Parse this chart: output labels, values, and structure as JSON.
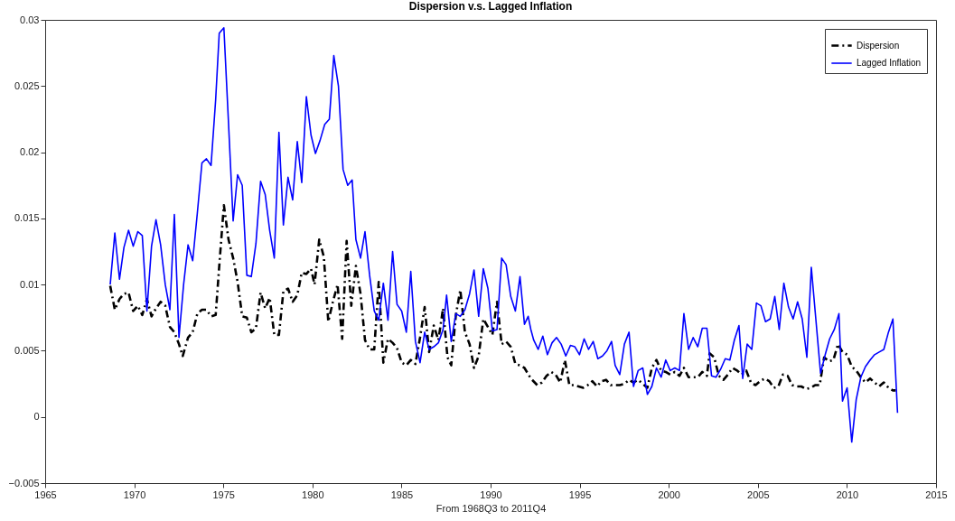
{
  "chart_data": {
    "type": "line",
    "title": "Dispersion v.s. Lagged Inflation",
    "xlabel": "From 1968Q3 to 2011Q4",
    "xlim": [
      1965,
      2015
    ],
    "xticks": [
      1965,
      1970,
      1975,
      1980,
      1985,
      1990,
      1995,
      2000,
      2005,
      2010,
      2015
    ],
    "ylim": [
      -0.005,
      0.03
    ],
    "yticks": [
      -0.005,
      0,
      0.005,
      0.01,
      0.015,
      0.02,
      0.025,
      0.03
    ],
    "grid": false,
    "legend": "top right",
    "marker": "none",
    "series": [
      {
        "name": "Dispersion",
        "color": "#000000",
        "line_style": "dashed",
        "x": [
          1968.65,
          1968.91,
          1969.17,
          1969.42,
          1969.68,
          1969.94,
          1970.2,
          1970.45,
          1970.71,
          1970.97,
          1971.22,
          1971.48,
          1971.74,
          1972.0,
          1972.25,
          1972.51,
          1972.72,
          1973.02,
          1973.28,
          1973.54,
          1973.8,
          1974.05,
          1974.31,
          1974.57,
          1974.77,
          1975.03,
          1975.29,
          1975.55,
          1975.8,
          1976.06,
          1976.32,
          1976.57,
          1976.83,
          1977.09,
          1977.35,
          1977.6,
          1977.86,
          1978.12,
          1978.37,
          1978.63,
          1978.89,
          1979.15,
          1979.4,
          1979.66,
          1979.92,
          1980.12,
          1980.38,
          1980.64,
          1980.89,
          1981.15,
          1981.41,
          1981.67,
          1981.92,
          1982.18,
          1982.44,
          1982.7,
          1982.95,
          1983.21,
          1983.47,
          1983.72,
          1983.98,
          1984.24,
          1984.5,
          1984.75,
          1985.01,
          1985.27,
          1985.52,
          1985.78,
          1986.04,
          1986.3,
          1986.55,
          1986.81,
          1987.07,
          1987.33,
          1987.58,
          1987.79,
          1988.05,
          1988.3,
          1988.56,
          1988.82,
          1989.07,
          1989.33,
          1989.59,
          1989.85,
          1990.1,
          1990.36,
          1990.62,
          1990.87,
          1991.13,
          1991.39,
          1991.65,
          1991.9,
          1992.26,
          1992.62,
          1992.88,
          1993.14,
          1993.4,
          1993.65,
          1993.91,
          1994.17,
          1994.42,
          1994.68,
          1994.94,
          1995.2,
          1995.45,
          1995.71,
          1995.97,
          1996.22,
          1996.48,
          1996.74,
          1996.99,
          1997.25,
          1997.51,
          1997.77,
          1998.02,
          1998.28,
          1998.54,
          1998.8,
          1999.05,
          1999.31,
          1999.57,
          1999.83,
          2000.08,
          2000.34,
          2000.6,
          2000.85,
          2001.11,
          2001.37,
          2001.63,
          2001.88,
          2002.14,
          2002.29,
          2002.55,
          2002.81,
          2003.07,
          2003.32,
          2003.58,
          2003.84,
          2004.09,
          2004.35,
          2004.61,
          2004.87,
          2005.12,
          2005.38,
          2005.64,
          2005.89,
          2006.15,
          2006.41,
          2006.67,
          2006.92,
          2007.18,
          2007.44,
          2007.7,
          2007.95,
          2008.21,
          2008.47,
          2008.72,
          2008.98,
          2009.24,
          2009.5,
          2009.75,
          2010.01,
          2010.27,
          2010.52,
          2010.78,
          2011.04,
          2011.3,
          2011.55,
          2011.81,
          2012.07,
          2012.33,
          2012.58,
          2012.74
        ],
        "values": [
          0.0099,
          0.0081,
          0.0089,
          0.0093,
          0.0094,
          0.008,
          0.0084,
          0.0077,
          0.0089,
          0.0076,
          0.0082,
          0.0087,
          0.0084,
          0.0068,
          0.0064,
          0.0055,
          0.0046,
          0.006,
          0.0064,
          0.0078,
          0.0081,
          0.0081,
          0.0076,
          0.0077,
          0.0114,
          0.016,
          0.0134,
          0.012,
          0.0102,
          0.0076,
          0.0075,
          0.0064,
          0.0067,
          0.0094,
          0.0082,
          0.009,
          0.0062,
          0.0062,
          0.0095,
          0.0097,
          0.0087,
          0.0092,
          0.0109,
          0.0108,
          0.0112,
          0.01,
          0.0134,
          0.0121,
          0.0072,
          0.0087,
          0.01,
          0.0059,
          0.0133,
          0.0084,
          0.0114,
          0.0093,
          0.0058,
          0.0051,
          0.0051,
          0.0102,
          0.0041,
          0.0059,
          0.0056,
          0.0052,
          0.0041,
          0.0039,
          0.0043,
          0.004,
          0.006,
          0.0083,
          0.0049,
          0.0069,
          0.0058,
          0.0082,
          0.0045,
          0.0039,
          0.0077,
          0.0096,
          0.0064,
          0.0055,
          0.0037,
          0.0046,
          0.0074,
          0.0068,
          0.0062,
          0.0087,
          0.0055,
          0.0057,
          0.0053,
          0.004,
          0.0039,
          0.0037,
          0.0029,
          0.0024,
          0.0026,
          0.0031,
          0.0034,
          0.0032,
          0.0026,
          0.0043,
          0.0024,
          0.0024,
          0.0023,
          0.0022,
          0.0024,
          0.0027,
          0.0023,
          0.0027,
          0.0028,
          0.0024,
          0.0024,
          0.0024,
          0.0025,
          0.0028,
          0.0026,
          0.0028,
          0.0025,
          0.0022,
          0.0037,
          0.0043,
          0.0035,
          0.0034,
          0.0032,
          0.0034,
          0.0031,
          0.0037,
          0.003,
          0.003,
          0.003,
          0.0034,
          0.0031,
          0.0048,
          0.0045,
          0.0031,
          0.0028,
          0.0032,
          0.0037,
          0.0035,
          0.0032,
          0.0035,
          0.0026,
          0.0024,
          0.0027,
          0.0029,
          0.0027,
          0.0022,
          0.0023,
          0.0032,
          0.0031,
          0.0024,
          0.0023,
          0.0023,
          0.0021,
          0.0022,
          0.0024,
          0.0024,
          0.0045,
          0.0042,
          0.0043,
          0.0055,
          0.0049,
          0.0047,
          0.0038,
          0.0035,
          0.003,
          0.0026,
          0.0029,
          0.0026,
          0.0023,
          0.0026,
          0.0022,
          0.002,
          0.002
        ]
      },
      {
        "name": "Lagged Inflation",
        "color": "#0000ff",
        "line_style": "solid",
        "x": [
          1968.65,
          1968.91,
          1969.17,
          1969.42,
          1969.68,
          1969.94,
          1970.2,
          1970.45,
          1970.71,
          1970.97,
          1971.22,
          1971.48,
          1971.74,
          1972.0,
          1972.25,
          1972.51,
          1972.77,
          1973.02,
          1973.28,
          1973.54,
          1973.8,
          1974.05,
          1974.31,
          1974.57,
          1974.77,
          1975.03,
          1975.29,
          1975.55,
          1975.8,
          1976.06,
          1976.32,
          1976.57,
          1976.83,
          1977.09,
          1977.35,
          1977.6,
          1977.86,
          1978.12,
          1978.37,
          1978.63,
          1978.89,
          1979.15,
          1979.4,
          1979.66,
          1979.92,
          1980.17,
          1980.43,
          1980.69,
          1980.95,
          1981.2,
          1981.46,
          1981.72,
          1981.98,
          1982.23,
          1982.44,
          1982.7,
          1982.95,
          1983.21,
          1983.47,
          1983.72,
          1983.98,
          1984.24,
          1984.5,
          1984.75,
          1985.01,
          1985.27,
          1985.52,
          1985.78,
          1986.04,
          1986.3,
          1986.55,
          1986.81,
          1987.07,
          1987.33,
          1987.53,
          1987.79,
          1988.05,
          1988.3,
          1988.56,
          1988.82,
          1989.07,
          1989.33,
          1989.59,
          1989.85,
          1990.1,
          1990.36,
          1990.62,
          1990.87,
          1991.13,
          1991.39,
          1991.65,
          1991.9,
          1992.11,
          1992.26,
          1992.42,
          1992.67,
          1992.93,
          1993.19,
          1993.45,
          1993.7,
          1993.96,
          1994.22,
          1994.48,
          1994.73,
          1994.99,
          1995.25,
          1995.5,
          1995.76,
          1996.02,
          1996.28,
          1996.53,
          1996.79,
          1996.99,
          1997.25,
          1997.51,
          1997.77,
          1998.02,
          1998.28,
          1998.54,
          1998.8,
          1999.05,
          1999.31,
          1999.57,
          1999.83,
          2000.08,
          2000.34,
          2000.6,
          2000.85,
          2001.11,
          2001.37,
          2001.63,
          2001.88,
          2002.14,
          2002.4,
          2002.65,
          2002.91,
          2003.17,
          2003.43,
          2003.68,
          2003.94,
          2004.15,
          2004.4,
          2004.66,
          2004.92,
          2005.17,
          2005.43,
          2005.69,
          2005.95,
          2006.2,
          2006.46,
          2006.72,
          2006.98,
          2007.23,
          2007.49,
          2007.75,
          2008.0,
          2008.26,
          2008.52,
          2008.78,
          2009.03,
          2009.29,
          2009.55,
          2009.75,
          2010.01,
          2010.27,
          2010.52,
          2010.78,
          2011.04,
          2011.3,
          2011.55,
          2011.81,
          2012.07,
          2012.33,
          2012.58,
          2012.84
        ],
        "values": [
          0.01,
          0.0139,
          0.0104,
          0.0128,
          0.0141,
          0.0129,
          0.014,
          0.0137,
          0.008,
          0.0129,
          0.0149,
          0.013,
          0.01,
          0.0081,
          0.0153,
          0.006,
          0.01,
          0.013,
          0.0118,
          0.0154,
          0.0192,
          0.0195,
          0.019,
          0.024,
          0.029,
          0.0294,
          0.0222,
          0.0148,
          0.0183,
          0.0175,
          0.0107,
          0.0106,
          0.0131,
          0.0178,
          0.0168,
          0.0141,
          0.012,
          0.0215,
          0.0145,
          0.0181,
          0.0164,
          0.0208,
          0.0177,
          0.0242,
          0.0213,
          0.0199,
          0.0209,
          0.0221,
          0.0225,
          0.0273,
          0.025,
          0.0187,
          0.0175,
          0.0179,
          0.0134,
          0.012,
          0.014,
          0.0107,
          0.008,
          0.0073,
          0.0101,
          0.0073,
          0.0125,
          0.0085,
          0.008,
          0.0064,
          0.011,
          0.0057,
          0.0041,
          0.0064,
          0.0051,
          0.0053,
          0.0056,
          0.0066,
          0.0092,
          0.0057,
          0.0078,
          0.0076,
          0.0081,
          0.0093,
          0.0111,
          0.0076,
          0.0112,
          0.0097,
          0.0065,
          0.0066,
          0.012,
          0.0115,
          0.0091,
          0.008,
          0.0106,
          0.007,
          0.0076,
          0.0066,
          0.0058,
          0.0051,
          0.0061,
          0.0047,
          0.0056,
          0.006,
          0.0055,
          0.0046,
          0.0054,
          0.0053,
          0.0047,
          0.0059,
          0.0051,
          0.0057,
          0.0044,
          0.0046,
          0.005,
          0.0057,
          0.0039,
          0.0032,
          0.0055,
          0.0064,
          0.0023,
          0.0035,
          0.0037,
          0.0017,
          0.0023,
          0.0037,
          0.003,
          0.0043,
          0.0035,
          0.0037,
          0.0035,
          0.0078,
          0.0051,
          0.006,
          0.0053,
          0.0067,
          0.0067,
          0.0031,
          0.003,
          0.0036,
          0.0044,
          0.0043,
          0.0058,
          0.0069,
          0.0029,
          0.0055,
          0.0051,
          0.0086,
          0.0084,
          0.0072,
          0.0074,
          0.0091,
          0.0066,
          0.0101,
          0.0083,
          0.0074,
          0.0087,
          0.0074,
          0.0045,
          0.0113,
          0.0073,
          0.0033,
          0.0047,
          0.0059,
          0.0066,
          0.0078,
          0.0012,
          0.0022,
          -0.0019,
          0.0013,
          0.003,
          0.0038,
          0.0043,
          0.0047,
          0.0049,
          0.0051,
          0.0064,
          0.0074,
          0.0003
        ]
      }
    ]
  }
}
